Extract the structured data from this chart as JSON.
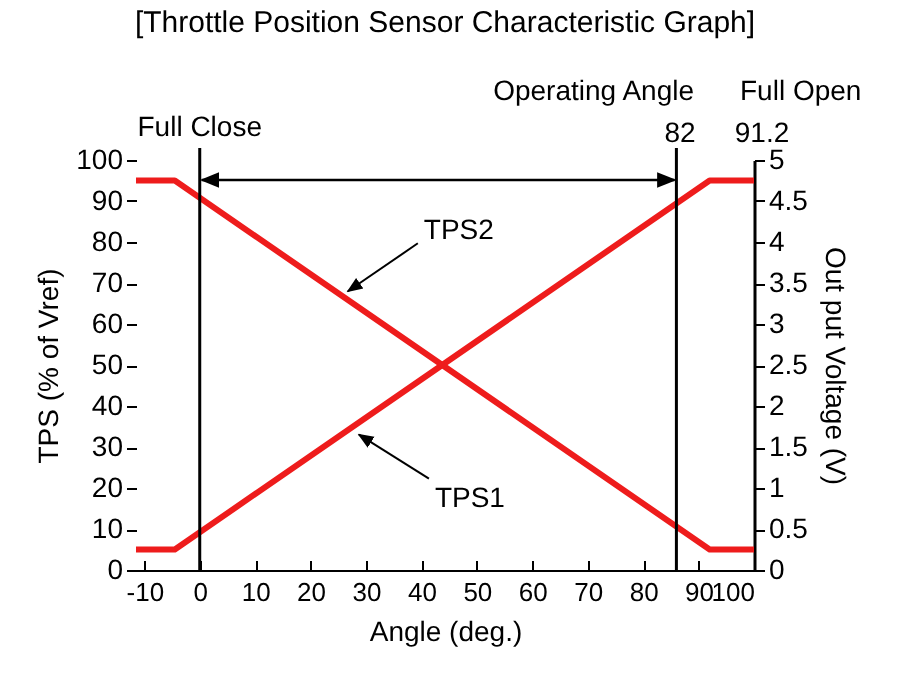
{
  "chart_data": {
    "type": "line",
    "title": "[Throttle Position Sensor Characteristic Graph]",
    "xlabel": "Angle (deg.)",
    "ylabel": "TPS (% of Vref)",
    "y2label": "Out put Voltage (V)",
    "x": [
      -11.5,
      -4.5,
      92,
      100
    ],
    "series": [
      {
        "color": "#ee1c1c",
        "values": [
          5,
          5,
          95,
          95
        ]
      },
      {
        "color": "#ee1c1c",
        "values": [
          95,
          95,
          5,
          5
        ]
      }
    ],
    "xlim": [
      -11.5,
      100
    ],
    "xticks": [
      -10,
      0,
      10,
      20,
      30,
      40,
      50,
      60,
      70,
      80,
      90,
      100
    ],
    "ylim": [
      0,
      100
    ],
    "yticks": [
      0,
      10,
      20,
      30,
      40,
      50,
      60,
      70,
      80,
      90,
      100
    ],
    "y2lim": [
      0,
      5
    ],
    "y2ticks": [
      0,
      0.5,
      1,
      1.5,
      2,
      2.5,
      3,
      3.5,
      4,
      4.5,
      5
    ],
    "ref_lines": [
      {
        "axis": "x",
        "value": 0,
        "label": "Full Close"
      },
      {
        "axis": "x",
        "value": 86
      }
    ],
    "annotations": [
      {
        "text": "TPS2",
        "x": 26,
        "y": 67
      },
      {
        "text": "TPS1",
        "x": 28,
        "y": 34
      },
      "Operating Angle",
      "82",
      "Full Open",
      "91.2"
    ],
    "grid": false,
    "legend": false,
    "marker": "none",
    "line_style": "solid"
  }
}
